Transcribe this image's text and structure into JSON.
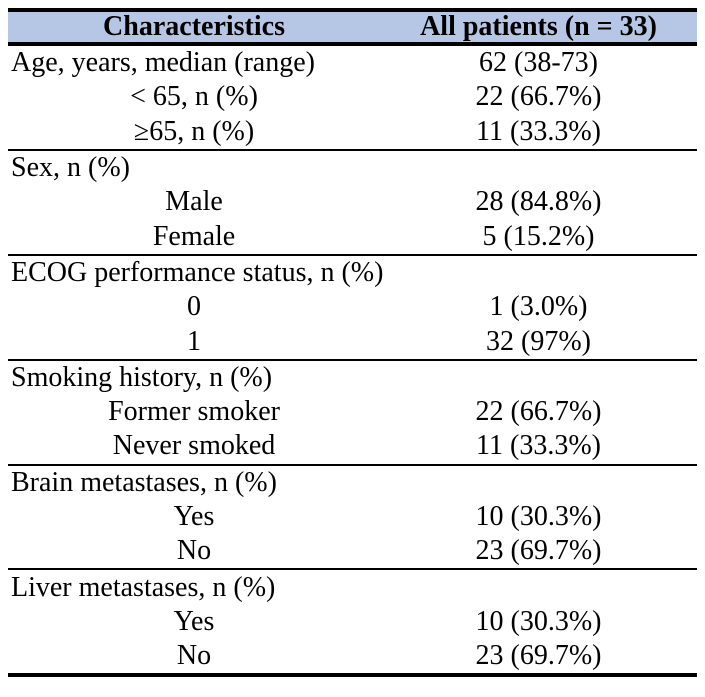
{
  "colors": {
    "header_bg": "#b5c7e4",
    "border": "#000000",
    "text": "#000000"
  },
  "table": {
    "header": {
      "col1": "Characteristics",
      "col2": "All patients (n = 33)"
    },
    "sections": [
      {
        "rows": [
          {
            "label": "Age, years, median (range)",
            "value": "62 (38-73)"
          },
          {
            "label": "< 65, n (%)",
            "value": "22 (66.7%)"
          },
          {
            "label": "≥65, n (%)",
            "value": "11 (33.3%)"
          }
        ]
      },
      {
        "rows": [
          {
            "label": "Sex, n (%)",
            "value": ""
          },
          {
            "label": "Male",
            "value": "28 (84.8%)"
          },
          {
            "label": "Female",
            "value": "5 (15.2%)"
          }
        ]
      },
      {
        "rows": [
          {
            "label": "ECOG performance status, n (%)",
            "value": ""
          },
          {
            "label": "0",
            "value": "1 (3.0%)"
          },
          {
            "label": "1",
            "value": "32 (97%)"
          }
        ]
      },
      {
        "rows": [
          {
            "label": "Smoking history, n (%)",
            "value": ""
          },
          {
            "label": "Former smoker",
            "value": "22 (66.7%)"
          },
          {
            "label": "Never smoked",
            "value": "11 (33.3%)"
          }
        ]
      },
      {
        "rows": [
          {
            "label": "Brain metastases, n (%)",
            "value": ""
          },
          {
            "label": "Yes",
            "value": "10 (30.3%)"
          },
          {
            "label": "No",
            "value": "23 (69.7%)"
          }
        ]
      },
      {
        "rows": [
          {
            "label": "Liver metastases, n (%)",
            "value": ""
          },
          {
            "label": "Yes",
            "value": "10 (30.3%)"
          },
          {
            "label": "No",
            "value": "23 (69.7%)"
          }
        ]
      }
    ]
  }
}
